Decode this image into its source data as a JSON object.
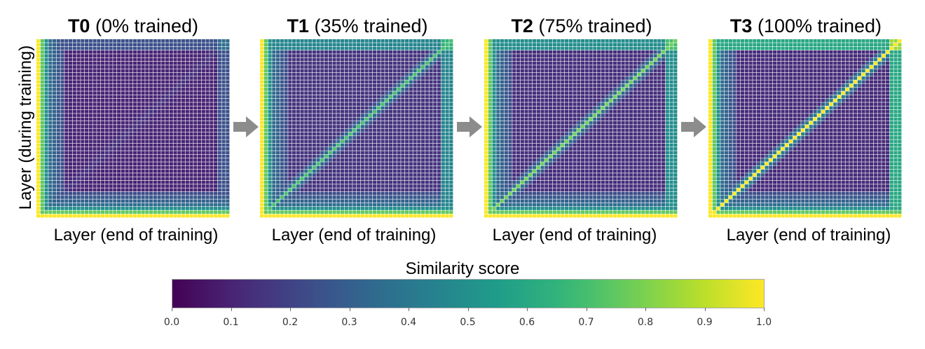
{
  "chart_data": [
    {
      "type": "heatmap",
      "title_bold": "T0",
      "title_rest": "(0% trained)",
      "xlabel": "Layer (end of training)",
      "ylabel": "Layer (during training)",
      "grid_size": 48,
      "colormap": "viridis",
      "value_range": [
        0,
        1
      ],
      "diagonal_similarity": 0.15,
      "base_similarity": 0.1,
      "early_layer_block": 1.0,
      "late_layer_block": 0.35
    },
    {
      "type": "heatmap",
      "title_bold": "T1",
      "title_rest": "(35% trained)",
      "xlabel": "Layer (end of training)",
      "grid_size": 48,
      "colormap": "viridis",
      "value_range": [
        0,
        1
      ],
      "diagonal_similarity": 0.7,
      "base_similarity": 0.15,
      "early_layer_block": 1.0,
      "late_layer_block": 0.65
    },
    {
      "type": "heatmap",
      "title_bold": "T2",
      "title_rest": "(75% trained)",
      "xlabel": "Layer (end of training)",
      "grid_size": 48,
      "colormap": "viridis",
      "value_range": [
        0,
        1
      ],
      "diagonal_similarity": 0.78,
      "base_similarity": 0.13,
      "early_layer_block": 1.0,
      "late_layer_block": 0.7
    },
    {
      "type": "heatmap",
      "title_bold": "T3",
      "title_rest": "(100% trained)",
      "xlabel": "Layer (end of training)",
      "grid_size": 48,
      "colormap": "viridis",
      "value_range": [
        0,
        1
      ],
      "diagonal_similarity": 1.0,
      "base_similarity": 0.12,
      "early_layer_block": 1.0,
      "late_layer_block": 0.85
    }
  ],
  "colorbar": {
    "title": "Similarity score",
    "ticks": [
      "0.0",
      "0.1",
      "0.2",
      "0.3",
      "0.4",
      "0.5",
      "0.6",
      "0.7",
      "0.8",
      "0.9",
      "1.0"
    ]
  },
  "arrow_color": "#8c8c8c"
}
